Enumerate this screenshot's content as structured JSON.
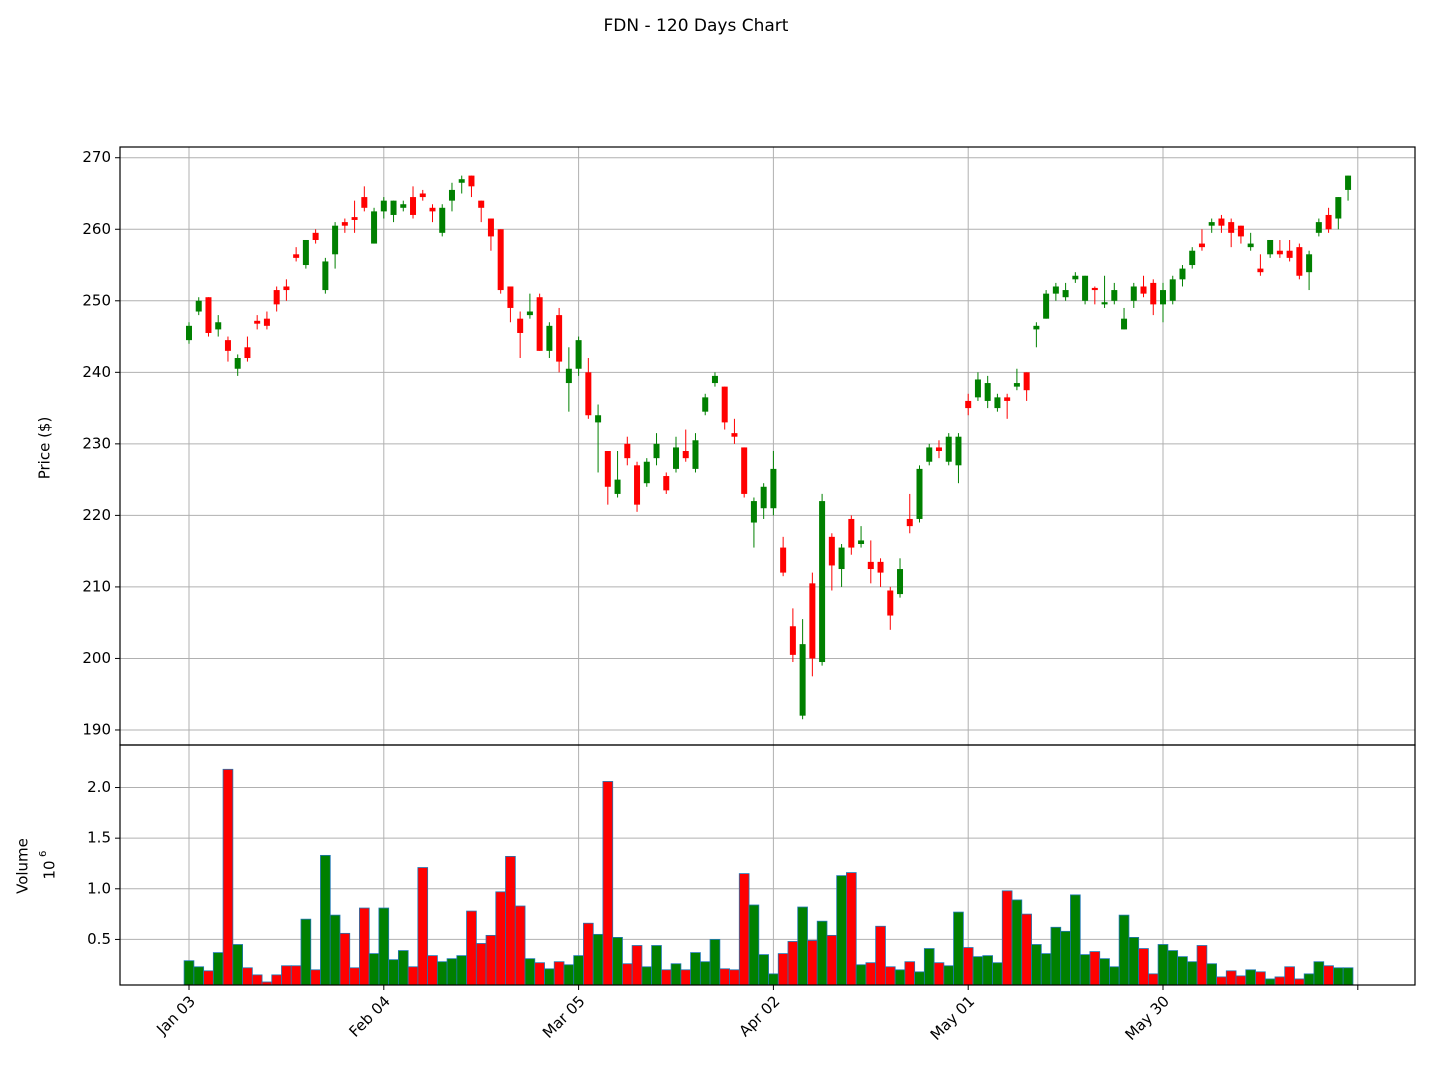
{
  "chart_data": {
    "type": "candlestick",
    "title": "FDN - 120 Days Chart",
    "ylabel": "Price ($)",
    "volume_ylabel": "Volume",
    "volume_scale_base": "10",
    "volume_scale_exponent": "6",
    "up_color": "green",
    "down_color": "red",
    "volume_edge_color": "#1f77b4",
    "grid": true,
    "categories": [
      "Jan 03",
      null,
      null,
      null,
      null,
      null,
      null,
      null,
      null,
      null,
      null,
      null,
      null,
      null,
      null,
      null,
      null,
      null,
      null,
      null,
      "Feb 04",
      null,
      null,
      null,
      null,
      null,
      null,
      null,
      null,
      null,
      null,
      null,
      null,
      null,
      null,
      null,
      null,
      null,
      null,
      null,
      "Mar 05",
      null,
      null,
      null,
      null,
      null,
      null,
      null,
      null,
      null,
      null,
      null,
      null,
      null,
      null,
      null,
      null,
      null,
      null,
      null,
      "Apr 02",
      null,
      null,
      null,
      null,
      null,
      null,
      null,
      null,
      null,
      null,
      null,
      null,
      null,
      null,
      null,
      null,
      null,
      null,
      null,
      "May 01",
      null,
      null,
      null,
      null,
      null,
      null,
      null,
      null,
      null,
      null,
      null,
      null,
      null,
      null,
      null,
      null,
      null,
      null,
      null,
      "May 30",
      null,
      null,
      null,
      null,
      null,
      null,
      null,
      null,
      null,
      null,
      null,
      null,
      null,
      null,
      null,
      null,
      null,
      null,
      null
    ],
    "xticks": [
      0,
      20,
      40,
      60,
      80,
      100,
      120
    ],
    "open": [
      244.5,
      248.5,
      250.5,
      246,
      244.5,
      240.5,
      243.5,
      247.2,
      247.5,
      251.5,
      252,
      256.5,
      255,
      259.5,
      251.5,
      256.5,
      261,
      261.7,
      264.5,
      258,
      262.5,
      262,
      263,
      264.5,
      265,
      263,
      259.5,
      264,
      266.5,
      267.5,
      264,
      261.5,
      260,
      252,
      247.5,
      248,
      250.5,
      243,
      248,
      238.5,
      240.5,
      240,
      233,
      229,
      223,
      230,
      227,
      224.5,
      228,
      225.5,
      226.5,
      229,
      226.5,
      234.5,
      238.5,
      238,
      231.5,
      229.5,
      219,
      221,
      221,
      215.5,
      204.5,
      192,
      210.5,
      199.5,
      217,
      212.5,
      219.5,
      216,
      213.5,
      213.5,
      209.5,
      209,
      219.5,
      219.5,
      227.5,
      229.5,
      227.5,
      227,
      236,
      236.5,
      236,
      235,
      236.5,
      238,
      240,
      246,
      247.5,
      251,
      250.5,
      253,
      250,
      251.8,
      249.5,
      250,
      246,
      250,
      252,
      252.5,
      249.5,
      250,
      253,
      255,
      258,
      260.5,
      261.5,
      261,
      260.5,
      257.5,
      254.5,
      256.5,
      257,
      257,
      257.5,
      254,
      259.5,
      262,
      261.5,
      265.5
    ],
    "high": [
      247,
      250.5,
      250.5,
      248,
      245,
      242.5,
      245,
      248,
      248.5,
      252,
      253,
      257.5,
      258.5,
      260,
      256,
      261,
      261.5,
      264,
      266,
      263,
      264.5,
      264,
      264,
      266,
      265.5,
      263.5,
      263.5,
      266.5,
      267.5,
      267.5,
      264,
      261.5,
      260,
      252,
      248.5,
      251,
      251,
      247,
      249,
      243.5,
      245,
      242,
      235.5,
      229,
      229,
      231,
      227.5,
      228,
      231.5,
      226,
      231,
      232,
      231.5,
      237,
      240,
      238,
      233.5,
      229.5,
      222.5,
      224.5,
      229,
      217,
      207,
      205.5,
      212,
      223,
      217.5,
      216,
      220,
      218.5,
      216.5,
      214,
      210,
      214,
      223,
      227,
      230,
      230.5,
      231.5,
      231.5,
      237,
      240,
      239.5,
      237,
      237,
      240.5,
      240,
      247,
      251.5,
      252.5,
      252.5,
      254,
      253.5,
      252,
      253.5,
      252.5,
      249,
      252.5,
      253.5,
      253,
      252.5,
      253.5,
      255,
      257.5,
      260,
      261.5,
      262,
      261.5,
      260.5,
      259.5,
      256.5,
      258.5,
      258.5,
      258.5,
      258,
      257,
      261.5,
      263,
      264.5,
      267.5
    ],
    "low": [
      244,
      248,
      245,
      245,
      241.5,
      239.5,
      241.5,
      246,
      246,
      248.5,
      250,
      255.5,
      254.5,
      258,
      251,
      254.5,
      259.5,
      259.5,
      262.5,
      258,
      261.5,
      261,
      262.5,
      261.5,
      264,
      261,
      259,
      262.5,
      265,
      264.5,
      261,
      257,
      251,
      247,
      242,
      247.5,
      243,
      242,
      240,
      234.5,
      239.5,
      233.5,
      226,
      221.5,
      222.5,
      227,
      220.5,
      224,
      227,
      223,
      226,
      227.5,
      226,
      234,
      238,
      232,
      230,
      222.5,
      215.5,
      219.5,
      220,
      211.5,
      199.5,
      191.5,
      197.5,
      199,
      209.5,
      210,
      214.5,
      215.5,
      210.5,
      210,
      204,
      208.5,
      217.5,
      219,
      227,
      228,
      227,
      224.5,
      234,
      236,
      235,
      234.5,
      233.5,
      237.5,
      236,
      243.5,
      247.5,
      250,
      250,
      252.5,
      249.5,
      249.5,
      249,
      249.5,
      246,
      249,
      250.5,
      248,
      247,
      249.5,
      252,
      254.5,
      257,
      259.5,
      259.5,
      257.5,
      258,
      257,
      253.5,
      256,
      256,
      255.5,
      253,
      251.5,
      259,
      259.5,
      260,
      264
    ],
    "close": [
      246.5,
      250,
      245.5,
      247,
      243,
      242,
      242,
      246.8,
      246.5,
      249.5,
      251.5,
      256,
      258.5,
      258.5,
      255.5,
      260.5,
      260.5,
      261.3,
      263,
      262.5,
      264,
      264,
      263.5,
      262,
      264.5,
      262.5,
      263,
      265.5,
      267,
      266,
      263,
      259,
      251.5,
      249,
      245.5,
      248.5,
      243,
      246.5,
      241.5,
      240.5,
      244.5,
      234,
      234,
      224,
      225,
      228,
      221.5,
      227.5,
      230,
      223.5,
      229.5,
      228,
      230.5,
      236.5,
      239.5,
      233,
      231,
      223,
      222,
      224,
      226.5,
      212,
      200.5,
      202,
      200,
      222,
      213,
      215.5,
      215.5,
      216.5,
      212.5,
      212,
      206,
      212.5,
      218.5,
      226.5,
      229.5,
      229,
      231,
      231,
      235,
      239,
      238.5,
      236.5,
      236,
      238.5,
      237.5,
      246.5,
      251,
      252,
      251.5,
      253.5,
      253.5,
      251.5,
      249.8,
      251.5,
      247.5,
      252,
      251,
      249.5,
      251.5,
      253,
      254.5,
      257,
      257.5,
      261,
      260.5,
      259.5,
      259,
      258,
      254,
      258.5,
      256.5,
      256,
      253.5,
      256.5,
      261,
      260,
      264.5,
      267.5
    ],
    "volume": [
      0.29,
      0.23,
      0.19,
      0.37,
      2.18,
      0.45,
      0.22,
      0.15,
      0.08,
      0.15,
      0.24,
      0.24,
      0.7,
      0.2,
      1.33,
      0.74,
      0.56,
      0.22,
      0.81,
      0.36,
      0.81,
      0.3,
      0.39,
      0.23,
      1.21,
      0.34,
      0.28,
      0.31,
      0.34,
      0.78,
      0.46,
      0.54,
      0.97,
      1.32,
      0.83,
      0.31,
      0.27,
      0.21,
      0.28,
      0.25,
      0.34,
      0.66,
      0.55,
      2.06,
      0.52,
      0.26,
      0.44,
      0.23,
      0.44,
      0.2,
      0.26,
      0.2,
      0.37,
      0.28,
      0.5,
      0.21,
      0.2,
      1.15,
      0.84,
      0.35,
      0.16,
      0.36,
      0.48,
      0.82,
      0.49,
      0.68,
      0.54,
      1.13,
      1.16,
      0.25,
      0.27,
      0.63,
      0.23,
      0.2,
      0.28,
      0.18,
      0.41,
      0.27,
      0.24,
      0.77,
      0.42,
      0.33,
      0.34,
      0.27,
      0.98,
      0.89,
      0.75,
      0.45,
      0.36,
      0.62,
      0.58,
      0.94,
      0.35,
      0.38,
      0.31,
      0.23,
      0.74,
      0.52,
      0.41,
      0.16,
      0.45,
      0.39,
      0.33,
      0.28,
      0.44,
      0.26,
      0.13,
      0.19,
      0.14,
      0.2,
      0.18,
      0.11,
      0.13,
      0.23,
      0.11,
      0.16,
      0.28,
      0.24,
      0.22,
      0.22
    ],
    "ylim": [
      187.9,
      271.5
    ],
    "yticks": [
      190,
      200,
      210,
      220,
      230,
      240,
      250,
      260,
      270
    ],
    "volume_ylim": [
      0.05,
      2.42
    ],
    "volume_yticks": [
      0.5,
      {
        "value": 1,
        "label": "1.0"
      },
      1.5,
      {
        "value": 2,
        "label": "2.0"
      }
    ]
  }
}
